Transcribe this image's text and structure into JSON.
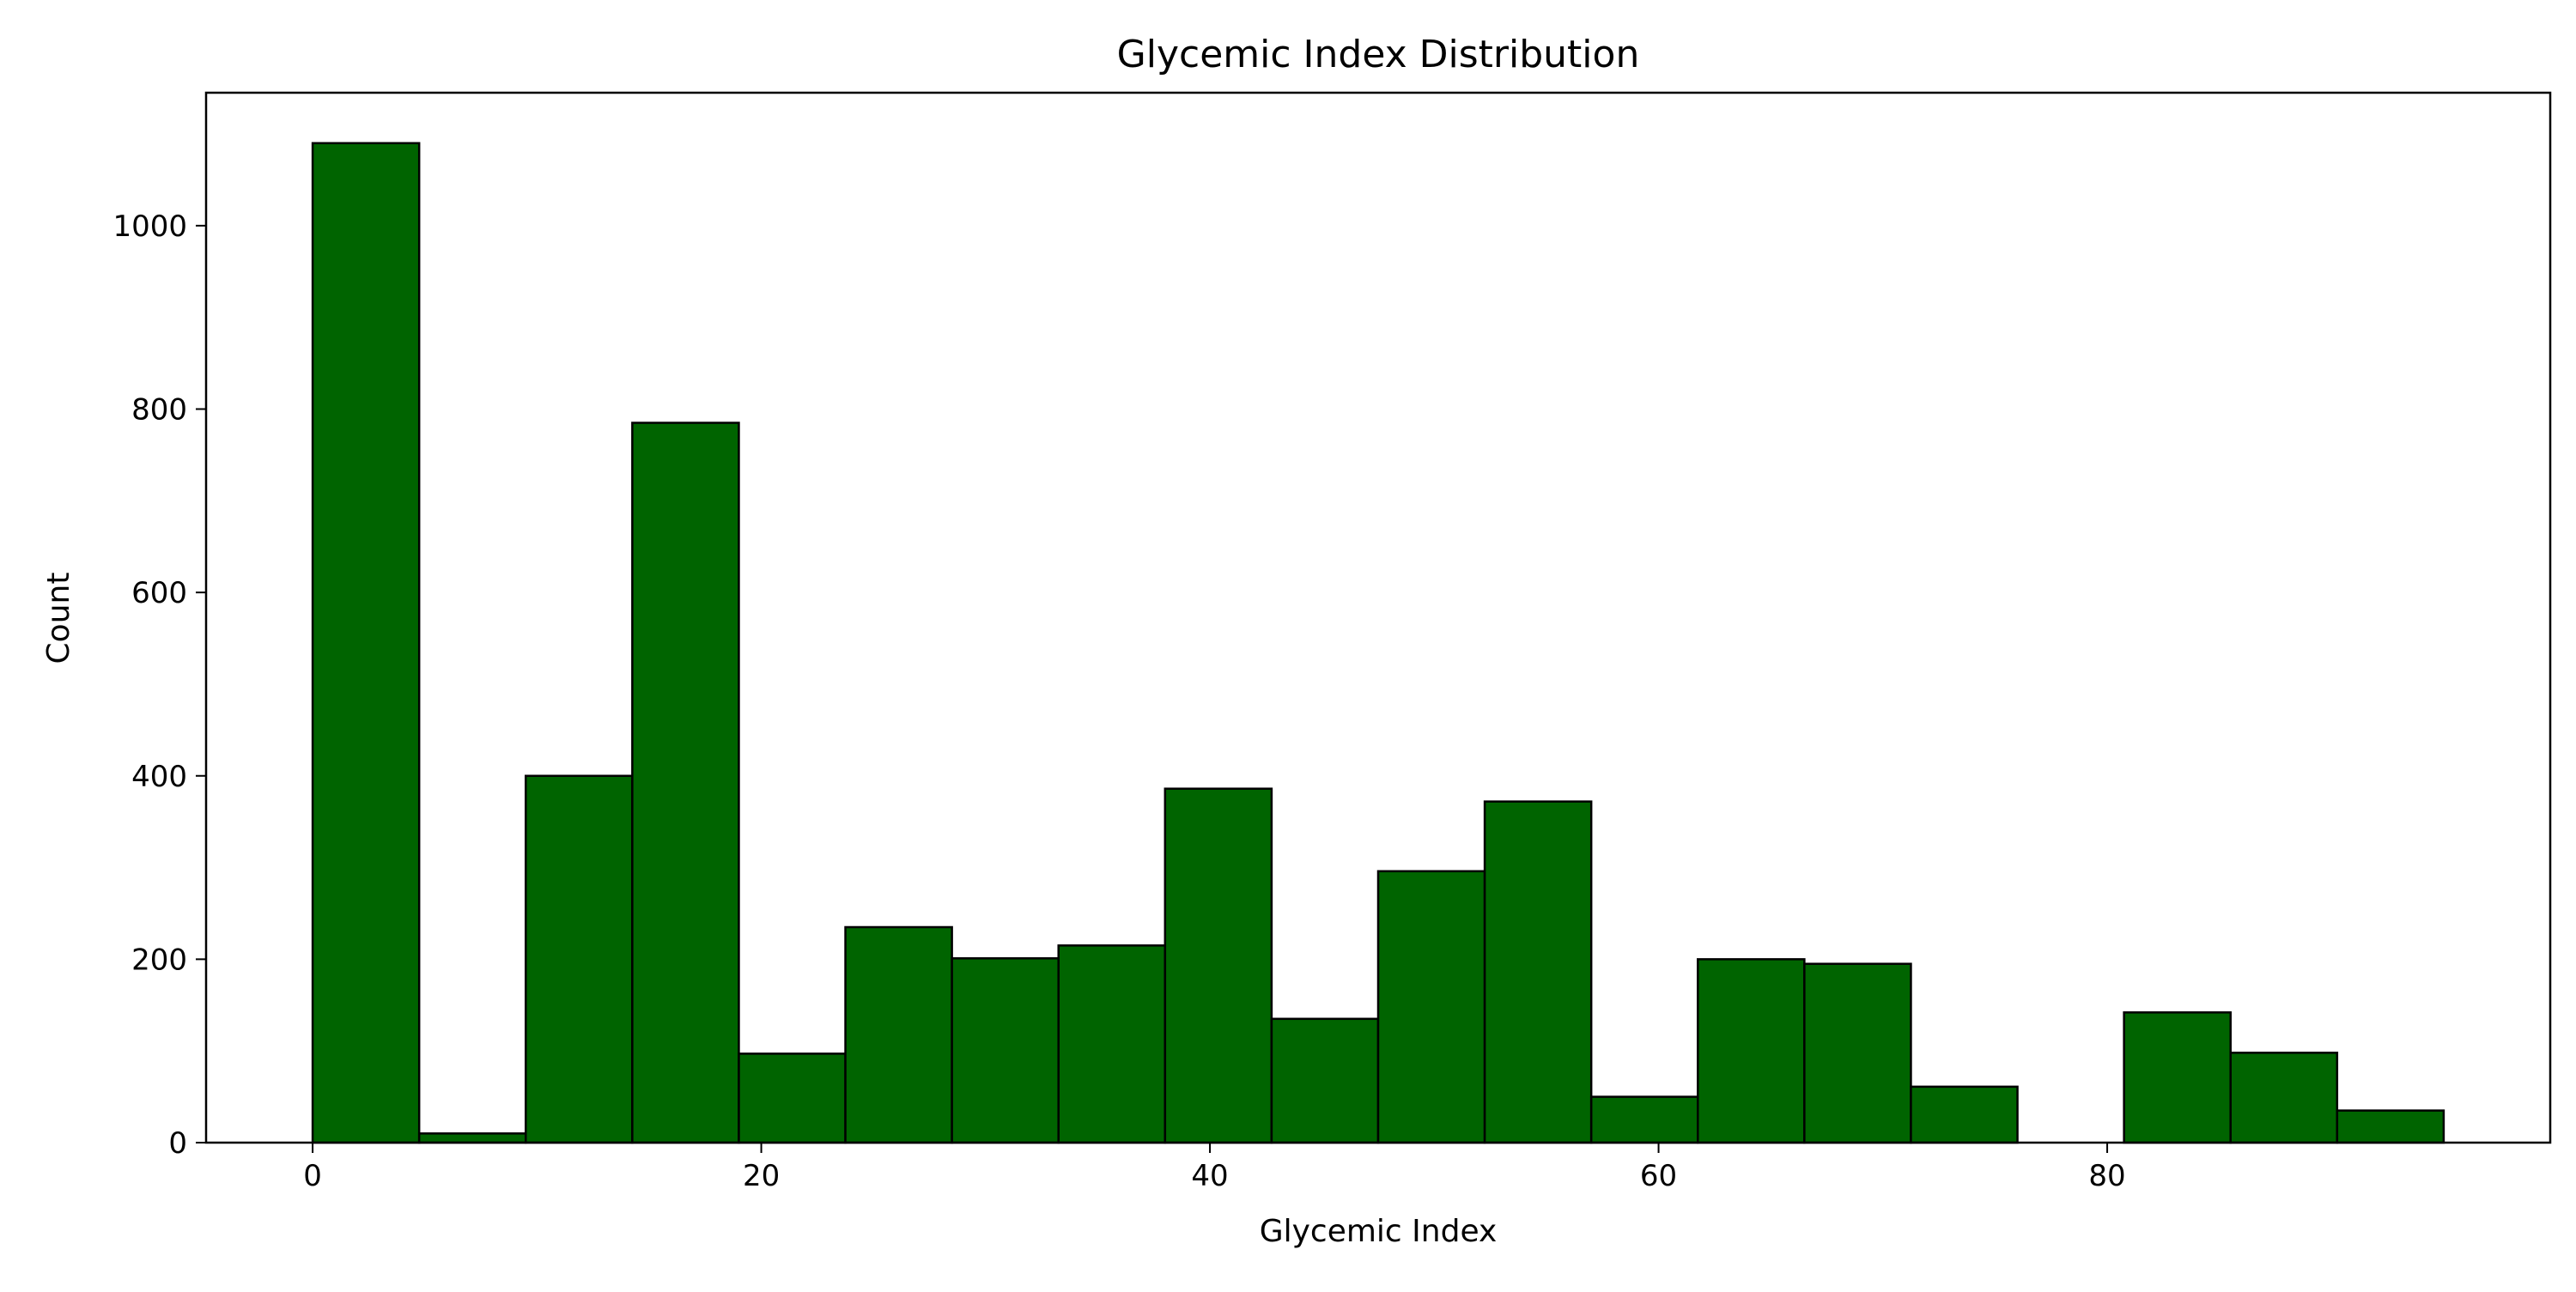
{
  "chart_data": {
    "type": "bar",
    "title": "Glycemic Index Distribution",
    "xlabel": "Glycemic Index",
    "ylabel": "Count",
    "xlim": [
      -4.75,
      99.75
    ],
    "ylim": [
      0,
      1145
    ],
    "x_ticks": [
      0,
      20,
      40,
      60,
      80
    ],
    "y_ticks": [
      0,
      200,
      400,
      600,
      800,
      1000
    ],
    "grid": false,
    "bar_color": "#006400",
    "edge_color": "#000000",
    "bins": [
      {
        "x0": 0.0,
        "x1": 4.75,
        "count": 1090
      },
      {
        "x0": 4.75,
        "x1": 9.5,
        "count": 10
      },
      {
        "x0": 9.5,
        "x1": 14.25,
        "count": 400
      },
      {
        "x0": 14.25,
        "x1": 19.0,
        "count": 785
      },
      {
        "x0": 19.0,
        "x1": 23.75,
        "count": 97
      },
      {
        "x0": 23.75,
        "x1": 28.5,
        "count": 235
      },
      {
        "x0": 28.5,
        "x1": 33.25,
        "count": 201
      },
      {
        "x0": 33.25,
        "x1": 38.0,
        "count": 215
      },
      {
        "x0": 38.0,
        "x1": 42.75,
        "count": 386
      },
      {
        "x0": 42.75,
        "x1": 47.5,
        "count": 135
      },
      {
        "x0": 47.5,
        "x1": 52.25,
        "count": 296
      },
      {
        "x0": 52.25,
        "x1": 57.0,
        "count": 372
      },
      {
        "x0": 57.0,
        "x1": 61.75,
        "count": 50
      },
      {
        "x0": 61.75,
        "x1": 66.5,
        "count": 200
      },
      {
        "x0": 66.5,
        "x1": 71.25,
        "count": 195
      },
      {
        "x0": 71.25,
        "x1": 76.0,
        "count": 61
      },
      {
        "x0": 76.0,
        "x1": 80.75,
        "count": 0
      },
      {
        "x0": 80.75,
        "x1": 85.5,
        "count": 142
      },
      {
        "x0": 85.5,
        "x1": 90.25,
        "count": 98
      },
      {
        "x0": 90.25,
        "x1": 95.0,
        "count": 35
      }
    ]
  }
}
